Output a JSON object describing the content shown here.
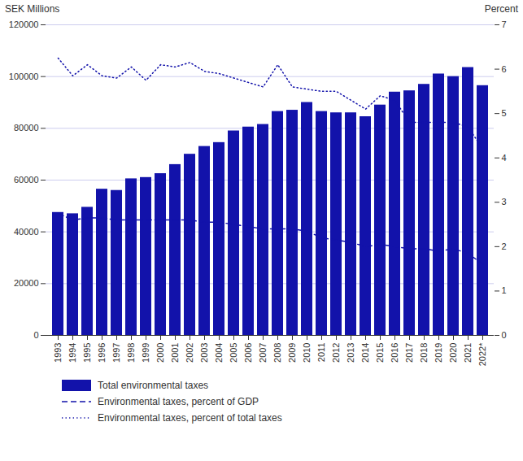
{
  "chart_data": {
    "type": "bar",
    "categories": [
      "1993",
      "1994",
      "1995",
      "1996",
      "1997",
      "1998",
      "1999",
      "2000",
      "2001",
      "2002",
      "2003",
      "2004",
      "2005",
      "2006",
      "2007",
      "2008",
      "2009",
      "2010",
      "2011",
      "2012",
      "2013",
      "2014",
      "2015",
      "2016",
      "2017",
      "2018",
      "2019",
      "2020",
      "2021",
      "2022*"
    ],
    "series": [
      {
        "name": "Total environmental taxes",
        "type": "bar",
        "color": "#1212aa",
        "values": [
          47500,
          47000,
          49500,
          56500,
          56000,
          60500,
          61000,
          62500,
          66000,
          70000,
          73000,
          74500,
          79000,
          80500,
          81500,
          86500,
          87000,
          90000,
          86500,
          86000,
          86000,
          84500,
          89000,
          94000,
          94500,
          97000,
          101000,
          100000,
          103500,
          96500
        ]
      },
      {
        "name": "Environmental taxes, percent of GDP",
        "type": "line",
        "color": "#1212aa",
        "line_style": "dashed",
        "axis": "y2",
        "values": [
          2.75,
          2.6,
          2.65,
          2.65,
          2.6,
          2.6,
          2.6,
          2.6,
          2.6,
          2.6,
          2.55,
          2.55,
          2.5,
          2.45,
          2.4,
          2.4,
          2.4,
          2.35,
          2.2,
          2.15,
          2.1,
          2.0,
          2.05,
          2.0,
          1.95,
          1.95,
          1.9,
          1.95,
          1.85,
          1.6
        ]
      },
      {
        "name": "Environmental taxes, percent of total taxes",
        "type": "line",
        "color": "#1212aa",
        "line_style": "dotted",
        "axis": "y2",
        "values": [
          6.25,
          5.85,
          6.1,
          5.85,
          5.8,
          6.05,
          5.75,
          6.1,
          6.05,
          6.15,
          5.95,
          5.9,
          5.8,
          5.7,
          5.6,
          6.1,
          5.6,
          5.55,
          5.5,
          5.5,
          5.3,
          5.1,
          5.4,
          5.3,
          4.8,
          4.8,
          4.8,
          4.8,
          4.7,
          4.2
        ]
      }
    ],
    "ylabel": "SEK Millions",
    "y2label": "Percent",
    "ylim": [
      0,
      120000
    ],
    "yticks": [
      0,
      20000,
      40000,
      60000,
      80000,
      100000,
      120000
    ],
    "y2lim": [
      0,
      7
    ],
    "y2ticks": [
      0,
      1,
      2,
      3,
      4,
      5,
      6,
      7
    ],
    "grid": true,
    "legend": "bottom"
  }
}
